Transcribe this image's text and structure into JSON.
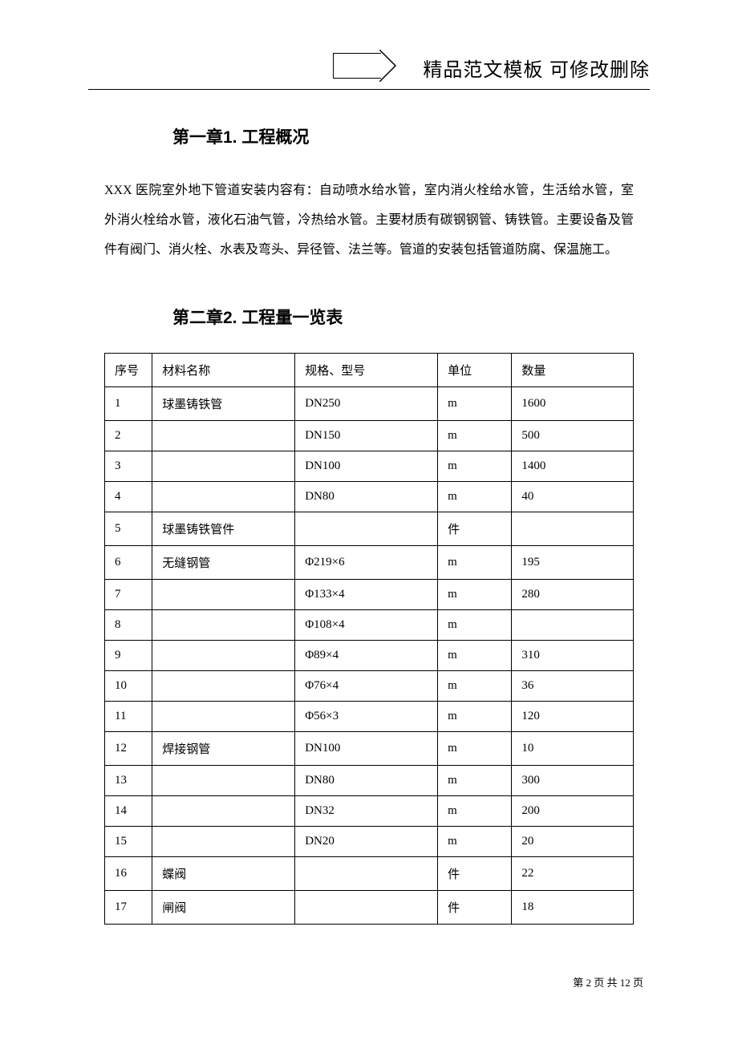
{
  "header": {
    "text": "精品范文模板  可修改删除"
  },
  "chapter1": {
    "heading": "第一章1. 工程概况",
    "body": "XXX 医院室外地下管道安装内容有：自动喷水给水管，室内消火栓给水管，生活给水管，室外消火栓给水管，液化石油气管，冷热给水管。主要材质有碳钢钢管、铸铁管。主要设备及管件有阀门、消火栓、水表及弯头、异径管、法兰等。管道的安装包括管道防腐、保温施工。"
  },
  "chapter2": {
    "heading": "第二章2. 工程量一览表"
  },
  "table": {
    "columns": [
      "序号",
      "材料名称",
      "规格、型号",
      "单位",
      "数量"
    ],
    "column_widths": [
      "9%",
      "27%",
      "27%",
      "14%",
      "23%"
    ],
    "rows": [
      [
        "1",
        "球墨铸铁管",
        "DN250",
        "m",
        "1600"
      ],
      [
        "2",
        "",
        "DN150",
        "m",
        "500"
      ],
      [
        "3",
        "",
        "DN100",
        "m",
        "1400"
      ],
      [
        "4",
        "",
        "DN80",
        "m",
        "40"
      ],
      [
        "5",
        "球墨铸铁管件",
        "",
        "件",
        ""
      ],
      [
        "6",
        "无缝钢管",
        "Φ219×6",
        "m",
        "195"
      ],
      [
        "7",
        "",
        "Φ133×4",
        "m",
        "280"
      ],
      [
        "8",
        "",
        "Φ108×4",
        "m",
        ""
      ],
      [
        "9",
        "",
        "Φ89×4",
        "m",
        "310"
      ],
      [
        "10",
        "",
        "Φ76×4",
        "m",
        "36"
      ],
      [
        "11",
        "",
        "Φ56×3",
        "m",
        "120"
      ],
      [
        "12",
        "焊接钢管",
        "DN100",
        "m",
        "10"
      ],
      [
        "13",
        "",
        "DN80",
        "m",
        "300"
      ],
      [
        "14",
        "",
        "DN32",
        "m",
        "200"
      ],
      [
        "15",
        "",
        "DN20",
        "m",
        "20"
      ],
      [
        "16",
        "蝶阀",
        "",
        "件",
        "22"
      ],
      [
        "17",
        "闸阀",
        "",
        "件",
        "18"
      ]
    ],
    "border_color": "#000000",
    "font_size": 15
  },
  "footer": {
    "text": "第 2 页 共 12 页",
    "current_page": 2,
    "total_pages": 12
  }
}
